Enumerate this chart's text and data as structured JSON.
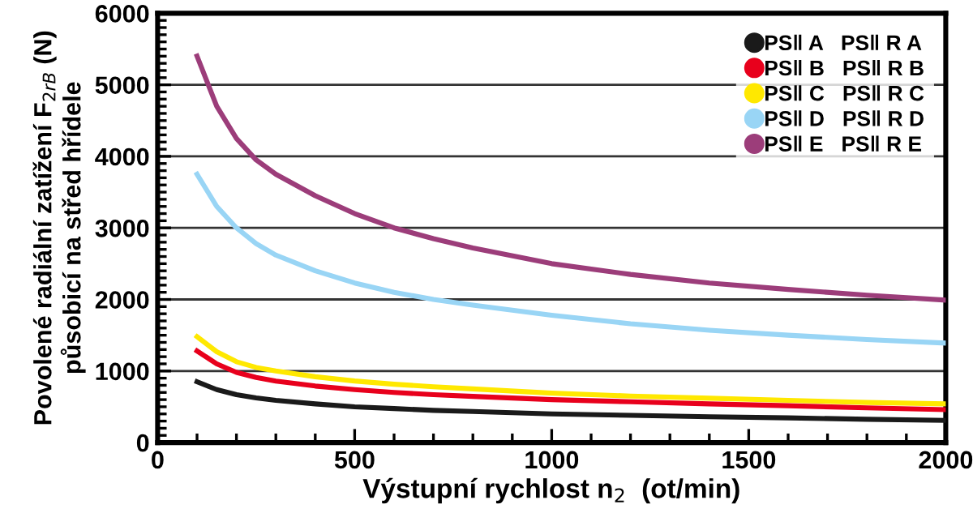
{
  "chart_data": {
    "type": "line",
    "xlabel": "Výstupní rychlost n$_{2}$  (ot/min)",
    "ylabel": "Povolené radiální zatížení F$_{2rB}$ (N)\npůsobicí na střed hřídele",
    "x": [
      100,
      150,
      200,
      250,
      300,
      400,
      500,
      600,
      700,
      800,
      1000,
      1200,
      1400,
      1600,
      1800,
      2000
    ],
    "series": [
      {
        "name": "PS‖ A   PS‖ R A",
        "color": "#1a1a1a",
        "values": [
          850,
          740,
          670,
          625,
          590,
          540,
          500,
          475,
          450,
          435,
          400,
          380,
          360,
          345,
          325,
          310
        ]
      },
      {
        "name": "PS‖ B   PS‖ R B",
        "color": "#e8001c",
        "values": [
          1280,
          1100,
          980,
          910,
          860,
          790,
          740,
          700,
          670,
          645,
          600,
          570,
          540,
          515,
          485,
          460
        ]
      },
      {
        "name": "PS‖ C   PS‖ R C",
        "color": "#ffe800",
        "values": [
          1480,
          1270,
          1130,
          1050,
          1000,
          920,
          860,
          815,
          780,
          750,
          690,
          650,
          620,
          590,
          560,
          540
        ]
      },
      {
        "name": "PS‖ D   PS‖ R D",
        "color": "#99d5f5",
        "values": [
          3750,
          3300,
          3000,
          2780,
          2620,
          2400,
          2230,
          2100,
          2000,
          1920,
          1780,
          1660,
          1570,
          1500,
          1440,
          1390
        ]
      },
      {
        "name": "PS‖ E   PS‖ R E",
        "color": "#9c3d7a",
        "values": [
          5400,
          4700,
          4250,
          3950,
          3750,
          3450,
          3200,
          3000,
          2850,
          2720,
          2500,
          2350,
          2230,
          2140,
          2060,
          1990
        ]
      }
    ],
    "xlim": [
      0,
      2000
    ],
    "xticks": [
      0,
      500,
      1000,
      1500,
      2000
    ],
    "ylim": [
      0,
      6000
    ],
    "yticks": [
      0,
      1000,
      2000,
      3000,
      4000,
      5000,
      6000
    ],
    "grid": "y",
    "legend": "top right",
    "line_style": "solid"
  }
}
